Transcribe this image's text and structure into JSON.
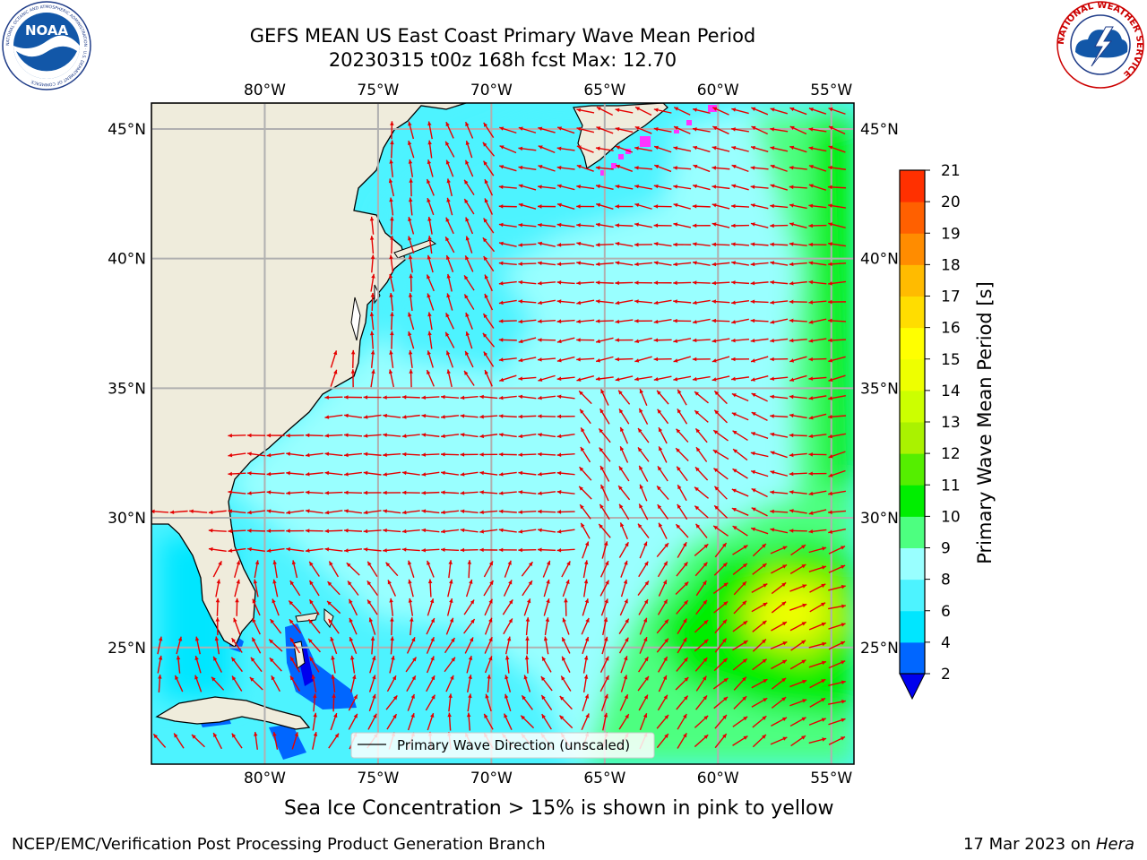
{
  "title": {
    "line1": "GEFS MEAN US East Coast Primary Wave Mean Period",
    "line2": "20230315 t00z 168h fcst   Max: 12.70"
  },
  "caption": "Sea Ice Concentration > 15% is shown in pink to yellow",
  "footer": {
    "left": "NCEP/EMC/Verification Post Processing Product Generation Branch",
    "right_date": "17 Mar 2023 on ",
    "right_host": "Hera"
  },
  "logos": {
    "noaa": {
      "text": "NOAA",
      "ring_text": "NATIONAL OCEANIC AND ATMOSPHERIC ADMINISTRATION · U.S. DEPARTMENT OF COMMERCE"
    },
    "nws": {
      "ring_text": "NATIONAL WEATHER SERVICE"
    }
  },
  "map": {
    "lon_labels": [
      "80°W",
      "75°W",
      "70°W",
      "65°W",
      "60°W",
      "55°W"
    ],
    "lat_labels": [
      "45°N",
      "40°N",
      "35°N",
      "30°N",
      "25°N"
    ],
    "legend_label": "Primary Wave Direction (unscaled)",
    "colors": {
      "land": "#efecdc",
      "coast": "#000000",
      "grid": "#b0b0b0",
      "arrow": "#e50000",
      "sea_ice": "#ff33ff"
    }
  },
  "colorbar": {
    "label": "Primary Wave Mean Period [s]",
    "ticks": [
      "2",
      "4",
      "6",
      "8",
      "9",
      "10",
      "11",
      "12",
      "13",
      "14",
      "15",
      "16",
      "17",
      "18",
      "19",
      "20",
      "21"
    ],
    "colors": [
      "#0066ff",
      "#00e6ff",
      "#4df3ff",
      "#99ffff",
      "#4dff80",
      "#00ee00",
      "#55ee00",
      "#aaf200",
      "#ccff00",
      "#eeff00",
      "#ffff00",
      "#ffdd00",
      "#ffbb00",
      "#ff8c00",
      "#ff6000",
      "#ff3000",
      "#ff0000"
    ],
    "extend_color": "#0000ee"
  },
  "chart_data": {
    "type": "heatmap",
    "variable": "Primary Wave Mean Period [s]",
    "max": 12.7,
    "lon_range": [
      -85,
      -54
    ],
    "lat_range": [
      20.5,
      46
    ],
    "grid_lon_ticks": [
      -80,
      -75,
      -70,
      -65,
      -60,
      -55
    ],
    "grid_lat_ticks": [
      45,
      40,
      35,
      30,
      25
    ],
    "cbar_range": [
      2,
      21
    ],
    "regions_period_s": [
      {
        "area": "Gulf Stream / western Atlantic",
        "period_s": 7
      },
      {
        "area": "central Atlantic",
        "period_s": 8.5
      },
      {
        "area": "east of 60°W",
        "period_s": 10
      },
      {
        "area": "southeast near 27°N 57°W",
        "period_s": 12.7
      },
      {
        "area": "Bahamas shallows",
        "period_s": 3
      }
    ]
  }
}
